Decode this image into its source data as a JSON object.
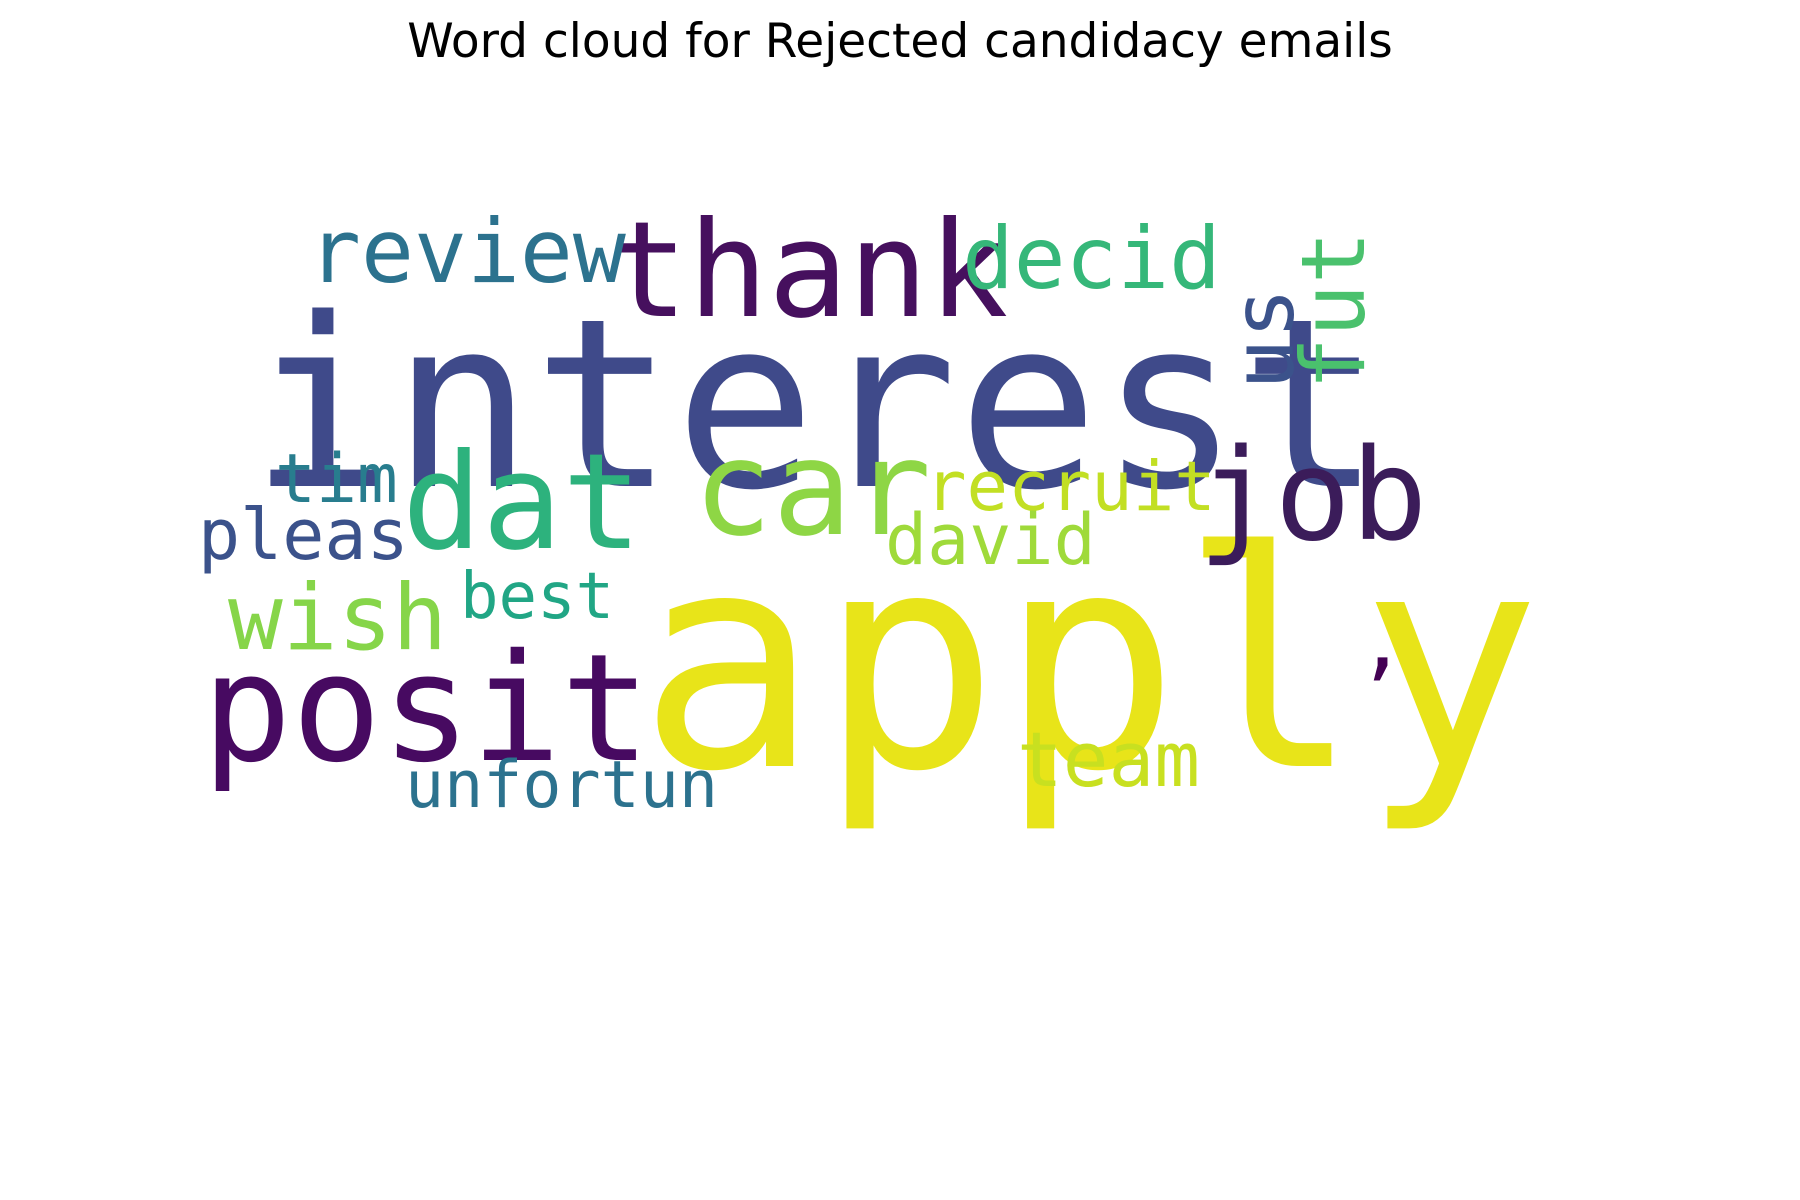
{
  "title": "Word cloud for Rejected candidacy emails",
  "chart_data": {
    "type": "wordcloud",
    "colormap": "viridis",
    "background": "#ffffff",
    "words": [
      {
        "text": "interest",
        "weight": 1.0,
        "color": "#3f4a8a"
      },
      {
        "text": "apply",
        "weight": 0.98,
        "color": "#e8e419"
      },
      {
        "text": "thank",
        "weight": 0.52,
        "color": "#46105e"
      },
      {
        "text": "posit",
        "weight": 0.58,
        "color": "#470a61"
      },
      {
        "text": "dat",
        "weight": 0.52,
        "color": "#2db27d"
      },
      {
        "text": "car",
        "weight": 0.5,
        "color": "#8ed645"
      },
      {
        "text": "job",
        "weight": 0.5,
        "color": "#3b1c5a"
      },
      {
        "text": "review",
        "weight": 0.34,
        "color": "#2c728e"
      },
      {
        "text": "decid",
        "weight": 0.3,
        "color": "#35b779"
      },
      {
        "text": "us",
        "weight": 0.34,
        "color": "#3b528b"
      },
      {
        "text": "fut",
        "weight": 0.34,
        "color": "#4ac16d"
      },
      {
        "text": "wish",
        "weight": 0.34,
        "color": "#86d549"
      },
      {
        "text": "recruit",
        "weight": 0.25,
        "color": "#c2df23"
      },
      {
        "text": "david",
        "weight": 0.25,
        "color": "#9fda3a"
      },
      {
        "text": "tim",
        "weight": 0.25,
        "color": "#287d8e"
      },
      {
        "text": "pleas",
        "weight": 0.25,
        "color": "#3b528b"
      },
      {
        "text": "best",
        "weight": 0.22,
        "color": "#21a685"
      },
      {
        "text": "team",
        "weight": 0.3,
        "color": "#c8e020"
      },
      {
        "text": "unfortun",
        "weight": 0.24,
        "color": "#2c728e"
      },
      {
        "text": ",",
        "weight": 0.3,
        "color": "#440154"
      }
    ]
  }
}
